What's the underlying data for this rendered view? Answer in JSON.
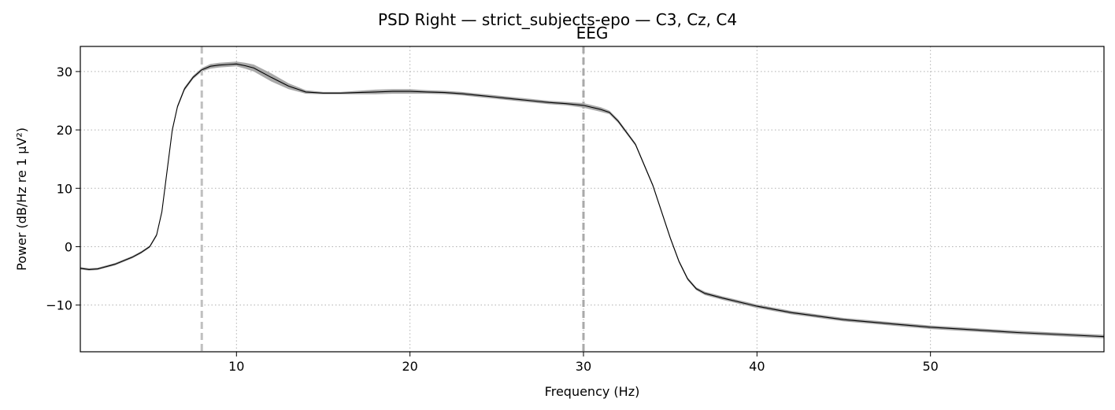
{
  "chart_data": {
    "type": "line",
    "suptitle": "PSD Right — strict_subjects-epo — C3, Cz, C4",
    "title": "EEG",
    "xlabel": "Frequency (Hz)",
    "ylabel": "Power (dB/Hz re 1 µV²)",
    "xlim": [
      1,
      60
    ],
    "ylim": [
      -18,
      34.3
    ],
    "xticks": [
      10,
      20,
      30,
      40,
      50
    ],
    "yticks": [
      -10,
      0,
      10,
      20,
      30
    ],
    "grid": true,
    "legend": "none",
    "vlines": [
      {
        "x": 8,
        "style": "dashed",
        "color": "#c0c0c0"
      },
      {
        "x": 30,
        "style": "dashed",
        "color": "#a9a9a9"
      }
    ],
    "series": [
      {
        "line_color": "#000000",
        "band_color": "#a9a9a9",
        "x": [
          1,
          1.5,
          2,
          3,
          4,
          4.5,
          5,
          5.4,
          5.7,
          6,
          6.3,
          6.6,
          7,
          7.5,
          8,
          8.5,
          9,
          9.5,
          10,
          10.5,
          11,
          12,
          13,
          14,
          15,
          16,
          17,
          18,
          19,
          20,
          21,
          22,
          23,
          24,
          25,
          26,
          27,
          28,
          29,
          30,
          31,
          31.5,
          32,
          33,
          34,
          35,
          35.5,
          36,
          36.5,
          37,
          38,
          40,
          42,
          45,
          50,
          55,
          60
        ],
        "mean": [
          -3.7,
          -3.9,
          -3.8,
          -3.0,
          -1.8,
          -1.0,
          0.0,
          2.0,
          6.0,
          13.0,
          20.0,
          24.0,
          27.0,
          29.0,
          30.3,
          30.9,
          31.1,
          31.2,
          31.3,
          31.0,
          30.6,
          29.0,
          27.5,
          26.5,
          26.3,
          26.3,
          26.4,
          26.5,
          26.6,
          26.6,
          26.5,
          26.4,
          26.2,
          25.9,
          25.6,
          25.3,
          25.0,
          24.7,
          24.5,
          24.2,
          23.5,
          23.0,
          21.5,
          17.5,
          10.5,
          1.5,
          -2.5,
          -5.5,
          -7.2,
          -8.0,
          -8.8,
          -10.2,
          -11.3,
          -12.5,
          -13.8,
          -14.7,
          -15.4
        ],
        "half_width": [
          0.2,
          0.2,
          0.2,
          0.2,
          0.2,
          0.2,
          0.2,
          0.25,
          0.25,
          0.25,
          0.3,
          0.3,
          0.3,
          0.3,
          0.3,
          0.4,
          0.4,
          0.4,
          0.4,
          0.5,
          0.6,
          0.7,
          0.5,
          0.3,
          0.2,
          0.2,
          0.3,
          0.4,
          0.4,
          0.4,
          0.3,
          0.3,
          0.3,
          0.3,
          0.3,
          0.3,
          0.3,
          0.3,
          0.3,
          0.4,
          0.4,
          0.3,
          0.3,
          0.25,
          0.25,
          0.25,
          0.25,
          0.25,
          0.25,
          0.3,
          0.3,
          0.3,
          0.3,
          0.3,
          0.3,
          0.3,
          0.3
        ]
      }
    ]
  }
}
